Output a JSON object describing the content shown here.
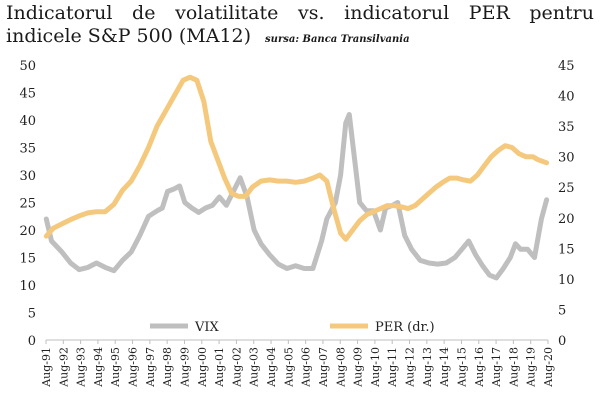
{
  "header": {
    "title": "Indicatorul de volatilitate vs. indicatorul PER pentru indicele S&P 500 (MA12)",
    "source": "sursa: Banca Transilvania"
  },
  "chart_data": {
    "type": "line",
    "title": "Indicatorul de volatilitate vs. indicatorul PER pentru indicele S&P 500 (MA12)",
    "source": "sursa: Banca Transilvania",
    "x_range": [
      1991.58,
      2020.58
    ],
    "y_left": {
      "min": 0,
      "max": 50,
      "ticks": [
        0,
        5,
        10,
        15,
        20,
        25,
        30,
        35,
        40,
        45,
        50
      ]
    },
    "y_right": {
      "min": 0,
      "max": 45,
      "ticks": [
        0,
        5,
        10,
        15,
        20,
        25,
        30,
        35,
        40,
        45
      ]
    },
    "x_tick_labels": [
      "Aug-91",
      "Aug-92",
      "Aug-93",
      "Aug-94",
      "Aug-95",
      "Aug-96",
      "Aug-97",
      "Aug-98",
      "Aug-99",
      "Aug-00",
      "Aug-01",
      "Aug-02",
      "Aug-03",
      "Aug-04",
      "Aug-05",
      "Aug-06",
      "Aug-07",
      "Aug-08",
      "Aug-09",
      "Aug-10",
      "Aug-11",
      "Aug-12",
      "Aug-13",
      "Aug-14",
      "Aug-15",
      "Aug-16",
      "Aug-17",
      "Aug-18",
      "Aug-19",
      "Aug-20"
    ],
    "legend": {
      "placement": "bottom"
    },
    "grid": false,
    "series": [
      {
        "name": "VIX",
        "axis": "left",
        "color": "#bfbfbf",
        "points": [
          [
            1991.6,
            22.0
          ],
          [
            1991.9,
            18.0
          ],
          [
            1992.5,
            16.0
          ],
          [
            1993.0,
            14.0
          ],
          [
            1993.5,
            12.8
          ],
          [
            1994.0,
            13.2
          ],
          [
            1994.5,
            14.0
          ],
          [
            1995.0,
            13.2
          ],
          [
            1995.5,
            12.6
          ],
          [
            1996.0,
            14.5
          ],
          [
            1996.5,
            16.0
          ],
          [
            1997.0,
            19.0
          ],
          [
            1997.5,
            22.5
          ],
          [
            1998.0,
            23.5
          ],
          [
            1998.3,
            24.0
          ],
          [
            1998.6,
            27.0
          ],
          [
            1999.0,
            27.5
          ],
          [
            1999.3,
            28.0
          ],
          [
            1999.6,
            25.0
          ],
          [
            2000.0,
            24.0
          ],
          [
            2000.4,
            23.2
          ],
          [
            2000.8,
            24.0
          ],
          [
            2001.2,
            24.5
          ],
          [
            2001.6,
            26.0
          ],
          [
            2002.0,
            24.5
          ],
          [
            2002.4,
            27.0
          ],
          [
            2002.8,
            29.5
          ],
          [
            2003.2,
            26.0
          ],
          [
            2003.6,
            20.0
          ],
          [
            2004.0,
            17.5
          ],
          [
            2004.5,
            15.5
          ],
          [
            2005.0,
            13.8
          ],
          [
            2005.5,
            13.0
          ],
          [
            2006.0,
            13.5
          ],
          [
            2006.5,
            13.0
          ],
          [
            2007.0,
            13.0
          ],
          [
            2007.5,
            18.0
          ],
          [
            2007.8,
            22.0
          ],
          [
            2008.3,
            25.0
          ],
          [
            2008.6,
            30.0
          ],
          [
            2008.9,
            39.5
          ],
          [
            2009.1,
            41.0
          ],
          [
            2009.4,
            33.0
          ],
          [
            2009.7,
            25.0
          ],
          [
            2010.1,
            23.5
          ],
          [
            2010.5,
            23.5
          ],
          [
            2010.9,
            20.0
          ],
          [
            2011.2,
            24.0
          ],
          [
            2011.6,
            24.5
          ],
          [
            2011.9,
            25.0
          ],
          [
            2012.3,
            19.0
          ],
          [
            2012.7,
            16.5
          ],
          [
            2013.2,
            14.5
          ],
          [
            2013.7,
            14.0
          ],
          [
            2014.2,
            13.8
          ],
          [
            2014.7,
            14.0
          ],
          [
            2015.2,
            15.0
          ],
          [
            2015.6,
            16.5
          ],
          [
            2016.0,
            18.0
          ],
          [
            2016.4,
            15.5
          ],
          [
            2016.8,
            13.5
          ],
          [
            2017.2,
            11.8
          ],
          [
            2017.6,
            11.3
          ],
          [
            2018.0,
            13.0
          ],
          [
            2018.4,
            15.0
          ],
          [
            2018.7,
            17.5
          ],
          [
            2019.0,
            16.5
          ],
          [
            2019.4,
            16.5
          ],
          [
            2019.8,
            15.0
          ],
          [
            2020.2,
            22.0
          ],
          [
            2020.5,
            25.5
          ]
        ]
      },
      {
        "name": "PER (dr.)",
        "axis": "right",
        "color": "#f5c97d",
        "points": [
          [
            1991.6,
            17.0
          ],
          [
            1992.0,
            18.3
          ],
          [
            1992.5,
            19.0
          ],
          [
            1993.0,
            19.7
          ],
          [
            1993.5,
            20.3
          ],
          [
            1994.0,
            20.8
          ],
          [
            1994.5,
            21.0
          ],
          [
            1995.0,
            21.0
          ],
          [
            1995.5,
            22.2
          ],
          [
            1996.0,
            24.5
          ],
          [
            1996.5,
            26.0
          ],
          [
            1997.0,
            28.5
          ],
          [
            1997.5,
            31.5
          ],
          [
            1998.0,
            35.0
          ],
          [
            1998.5,
            37.5
          ],
          [
            1999.0,
            40.0
          ],
          [
            1999.5,
            42.5
          ],
          [
            1999.9,
            43.0
          ],
          [
            2000.3,
            42.5
          ],
          [
            2000.7,
            39.0
          ],
          [
            2001.1,
            32.5
          ],
          [
            2001.5,
            29.5
          ],
          [
            2001.9,
            26.5
          ],
          [
            2002.3,
            24.0
          ],
          [
            2002.7,
            23.5
          ],
          [
            2003.1,
            23.5
          ],
          [
            2003.5,
            25.0
          ],
          [
            2004.0,
            26.0
          ],
          [
            2004.5,
            26.2
          ],
          [
            2005.0,
            26.0
          ],
          [
            2005.5,
            26.0
          ],
          [
            2006.0,
            25.8
          ],
          [
            2006.5,
            26.0
          ],
          [
            2007.0,
            26.5
          ],
          [
            2007.4,
            27.0
          ],
          [
            2007.8,
            26.0
          ],
          [
            2008.2,
            21.5
          ],
          [
            2008.6,
            17.5
          ],
          [
            2008.9,
            16.5
          ],
          [
            2009.3,
            18.0
          ],
          [
            2009.7,
            19.5
          ],
          [
            2010.1,
            20.5
          ],
          [
            2010.5,
            21.0
          ],
          [
            2010.9,
            21.5
          ],
          [
            2011.3,
            22.0
          ],
          [
            2011.7,
            22.0
          ],
          [
            2012.1,
            21.8
          ],
          [
            2012.5,
            21.5
          ],
          [
            2012.9,
            22.0
          ],
          [
            2013.3,
            23.0
          ],
          [
            2013.7,
            24.0
          ],
          [
            2014.1,
            25.0
          ],
          [
            2014.5,
            25.8
          ],
          [
            2014.9,
            26.5
          ],
          [
            2015.3,
            26.5
          ],
          [
            2015.7,
            26.2
          ],
          [
            2016.1,
            26.0
          ],
          [
            2016.5,
            27.0
          ],
          [
            2016.9,
            28.5
          ],
          [
            2017.3,
            30.0
          ],
          [
            2017.7,
            31.0
          ],
          [
            2018.1,
            31.8
          ],
          [
            2018.5,
            31.5
          ],
          [
            2018.9,
            30.5
          ],
          [
            2019.3,
            30.0
          ],
          [
            2019.7,
            30.0
          ],
          [
            2020.0,
            29.5
          ],
          [
            2020.5,
            29.0
          ]
        ]
      }
    ]
  }
}
